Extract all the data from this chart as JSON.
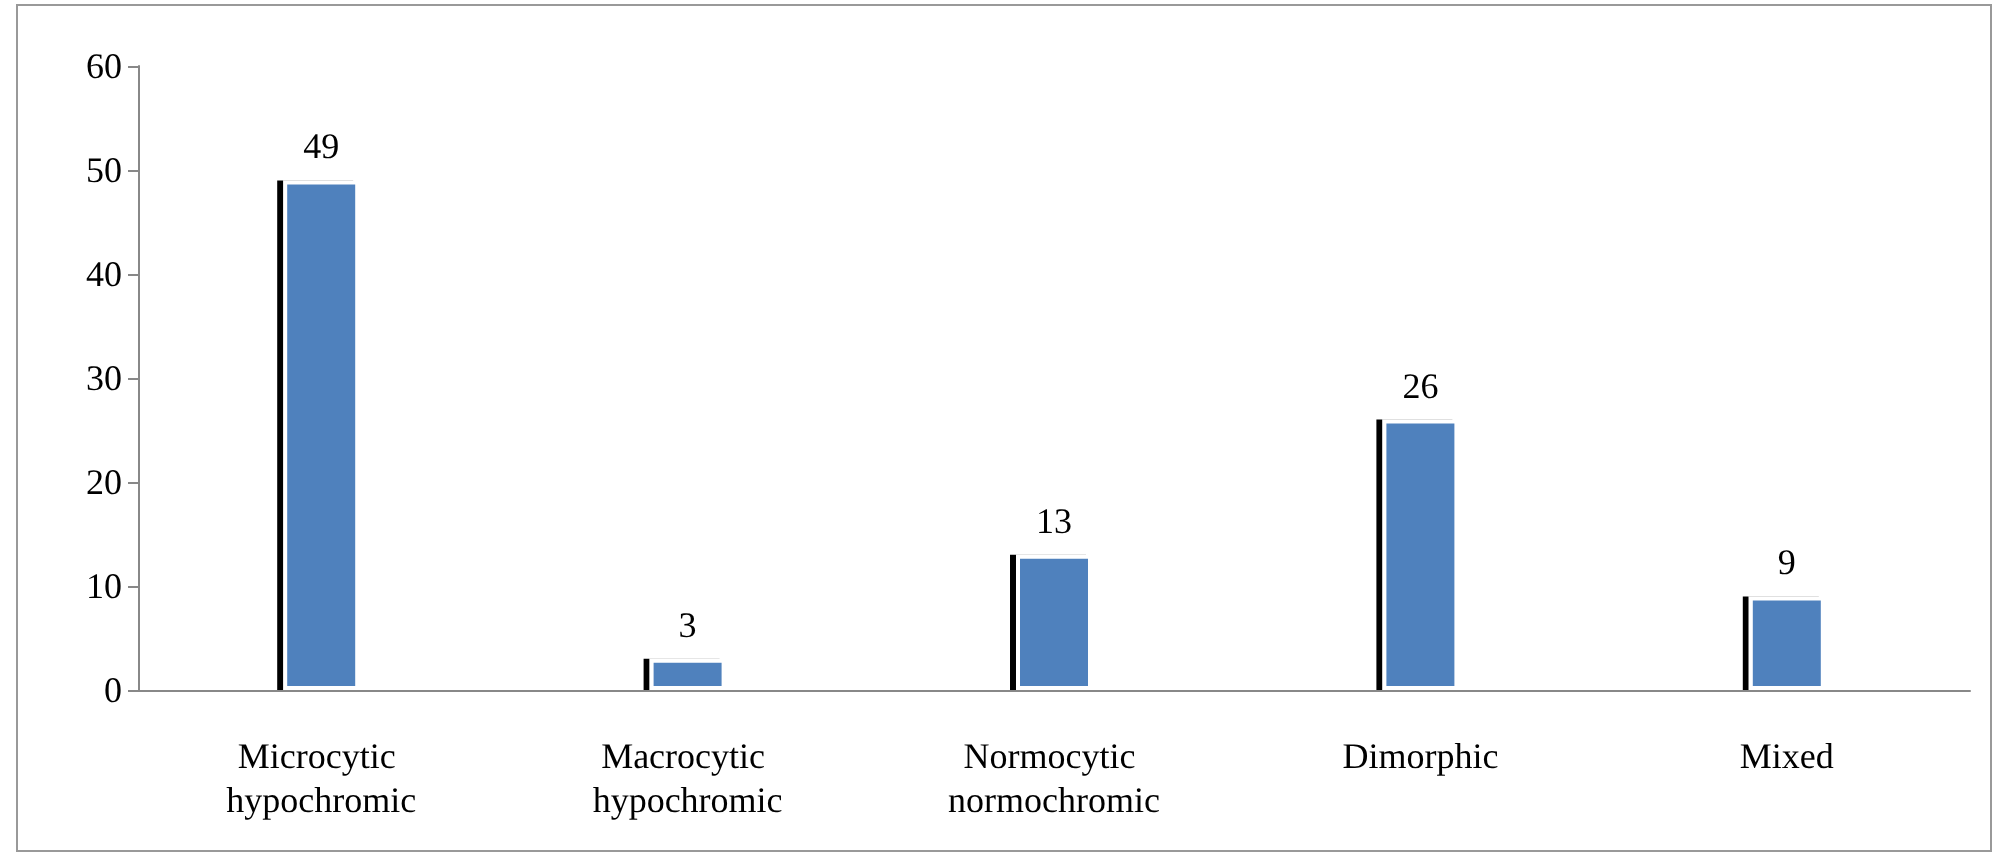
{
  "chart_data": {
    "type": "bar",
    "categories": [
      "Microcytic hypochromic",
      "Macrocytic hypochromic",
      "Normocytic normochromic",
      "Dimorphic",
      "Mixed"
    ],
    "values": [
      49,
      3,
      13,
      26,
      9
    ],
    "color": "#4f81bd",
    "ylim": [
      0,
      60
    ],
    "yticks": [
      0,
      10,
      20,
      30,
      40,
      50,
      60
    ],
    "grid": false,
    "data_labels": true
  }
}
